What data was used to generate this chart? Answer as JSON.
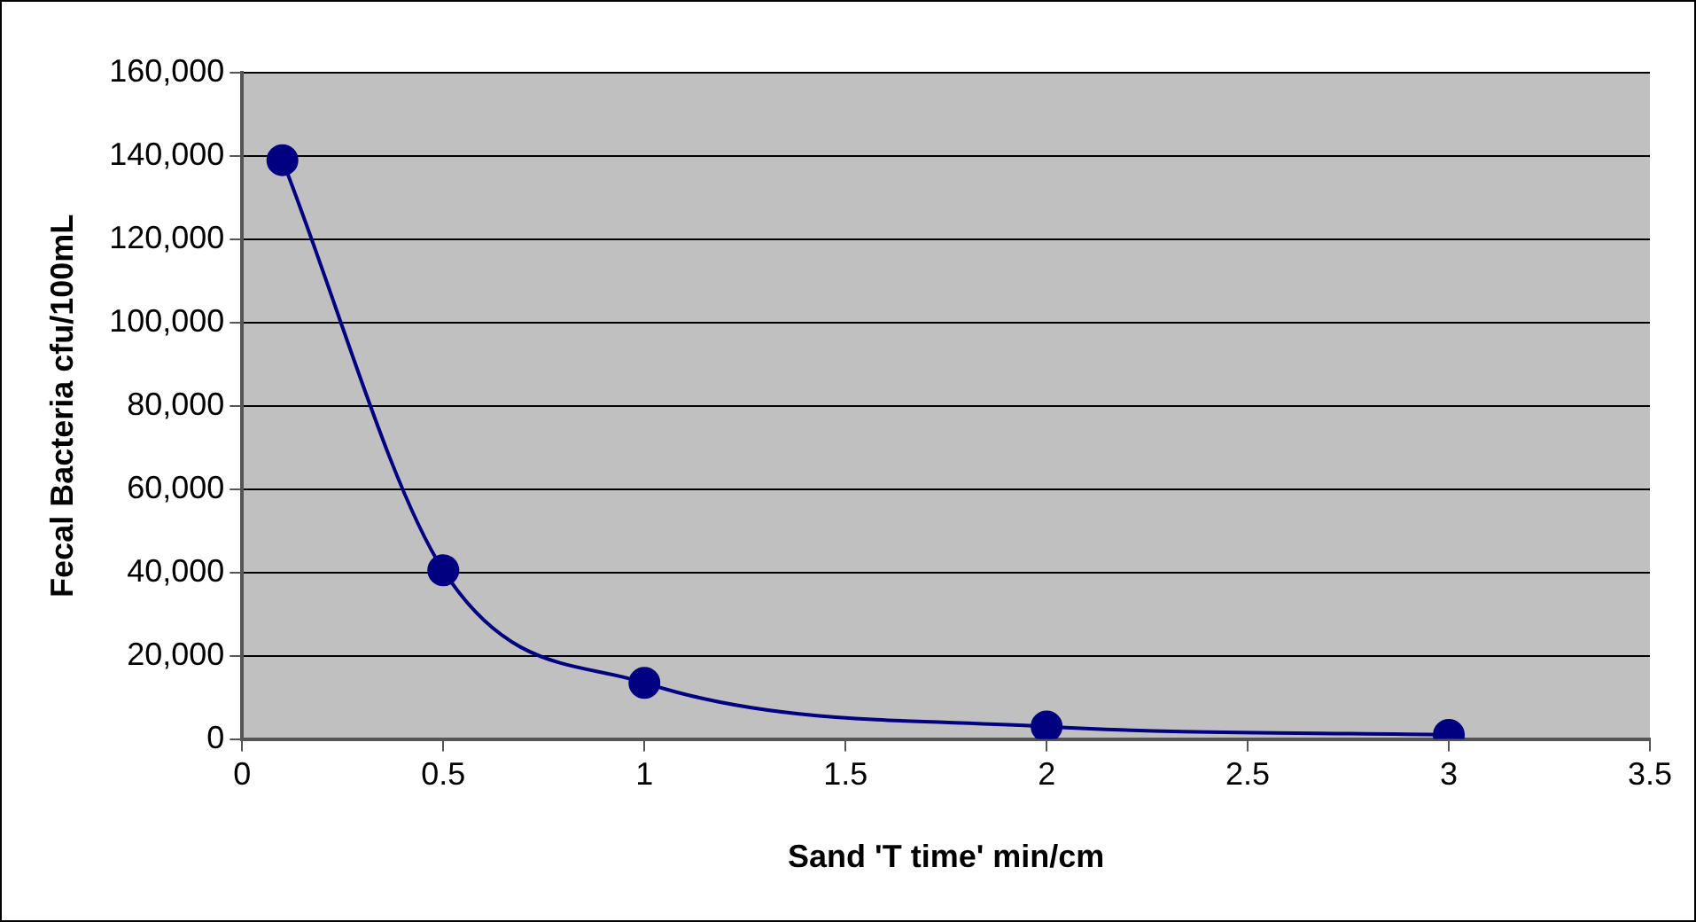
{
  "chart_data": {
    "type": "line",
    "xlabel": "Sand 'T time' min/cm",
    "ylabel": "Fecal Bacteria cfu/100mL",
    "x": [
      0.1,
      0.5,
      1,
      2,
      3
    ],
    "series": [
      {
        "color": "#000080",
        "values": [
          139000,
          40500,
          13500,
          3000,
          1000
        ]
      }
    ],
    "xlim": [
      0,
      3.5
    ],
    "xticks": [
      0,
      0.5,
      1,
      1.5,
      2,
      2.5,
      3,
      3.5
    ],
    "ylim": [
      0,
      160000
    ],
    "yticks": [
      {
        "value": 0,
        "label": "0"
      },
      {
        "value": 20000,
        "label": "20,000"
      },
      {
        "value": 40000,
        "label": "40,000"
      },
      {
        "value": 60000,
        "label": "60,000"
      },
      {
        "value": 80000,
        "label": "80,000"
      },
      {
        "value": 100000,
        "label": "100,000"
      },
      {
        "value": 120000,
        "label": "120,000"
      },
      {
        "value": 140000,
        "label": "140,000"
      },
      {
        "value": 160000,
        "label": "160,000"
      }
    ],
    "grid": "y",
    "legend": false,
    "marker": "circle",
    "line_style": "solid"
  }
}
